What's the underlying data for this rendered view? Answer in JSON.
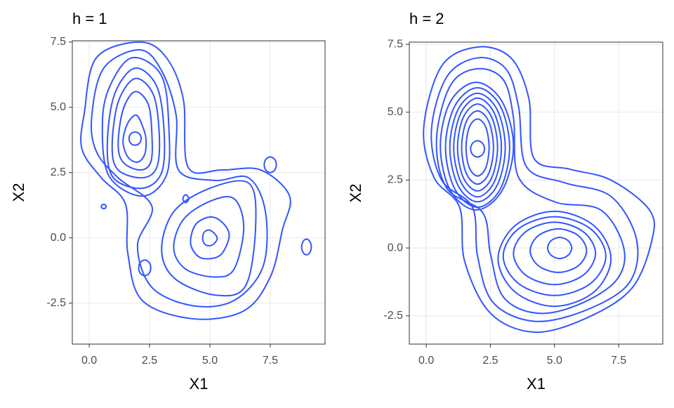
{
  "chart_data": [
    {
      "type": "contour",
      "title": "h = 1",
      "x_label": "X1",
      "y_label": "X2",
      "color": "#3355ff",
      "grid": true,
      "xlim": [
        -0.7,
        9.77
      ],
      "ylim": [
        -4.07,
        7.55
      ],
      "xticks": [
        {
          "value": 0,
          "label": "0.0"
        },
        {
          "value": 2.5,
          "label": "2.5"
        },
        {
          "value": 5,
          "label": "5.0"
        },
        {
          "value": 7.5,
          "label": "7.5"
        }
      ],
      "yticks": [
        {
          "value": -2.5,
          "label": "-2.5"
        },
        {
          "value": 0,
          "label": "0.0"
        },
        {
          "value": 2.5,
          "label": "2.5"
        },
        {
          "value": 5,
          "label": "5.0"
        },
        {
          "value": 7.5,
          "label": "7.5"
        }
      ],
      "series": [
        {
          "x": [
            2.15,
            2.08,
            1.9,
            1.72,
            1.65,
            1.72,
            1.9,
            2.08
          ],
          "values": [
            3.8,
            3.98,
            4.05,
            3.98,
            3.8,
            3.62,
            3.55,
            3.62
          ]
        },
        {
          "x": [
            2.35,
            2.2,
            1.95,
            1.6,
            1.4,
            1.6,
            2.0,
            2.3
          ],
          "values": [
            3.8,
            4.3,
            4.7,
            4.4,
            3.7,
            3.1,
            2.9,
            3.2
          ]
        },
        {
          "x": [
            2.6,
            2.45,
            1.9,
            1.4,
            1.2,
            1.4,
            2.1,
            2.55
          ],
          "values": [
            3.9,
            5.1,
            5.6,
            4.9,
            3.6,
            2.9,
            2.6,
            2.9
          ]
        },
        {
          "x": [
            2.9,
            2.65,
            1.9,
            1.2,
            0.95,
            1.2,
            2.2,
            2.8
          ],
          "values": [
            4.0,
            5.5,
            6.1,
            5.2,
            3.5,
            2.6,
            2.3,
            2.7
          ]
        },
        {
          "x": [
            3.1,
            2.8,
            1.9,
            1.05,
            0.75,
            1.0,
            2.2,
            3.0
          ],
          "values": [
            4.1,
            5.8,
            6.5,
            5.5,
            3.6,
            2.3,
            1.9,
            2.5
          ]
        },
        {
          "x": [
            3.3,
            3.0,
            1.8,
            0.9,
            0.55,
            0.8,
            2.2,
            3.2
          ],
          "values": [
            4.2,
            6.2,
            6.9,
            5.9,
            4.5,
            2.4,
            1.6,
            2.4
          ]
        },
        {
          "x": [
            5.3,
            5.15,
            4.95,
            4.75,
            4.7,
            4.8,
            5.0,
            5.2
          ],
          "values": [
            0,
            0.2,
            0.3,
            0.2,
            -0.05,
            -0.25,
            -0.3,
            -0.2
          ]
        },
        {
          "x": [
            5.8,
            5.5,
            5.0,
            4.4,
            4.2,
            4.5,
            5.0,
            5.5
          ],
          "values": [
            0.1,
            0.6,
            0.8,
            0.5,
            -0.2,
            -0.7,
            -0.8,
            -0.6
          ]
        },
        {
          "x": [
            6.4,
            6.0,
            5.0,
            3.9,
            3.5,
            4.0,
            5.2,
            6.0
          ],
          "values": [
            0.4,
            1.5,
            1.4,
            0.7,
            -0.4,
            -1.2,
            -1.5,
            -1.2
          ]
        },
        {
          "x": [
            6.9,
            6.6,
            5.0,
            3.5,
            3.0,
            3.6,
            5.3,
            6.5
          ],
          "values": [
            0.6,
            2.1,
            1.9,
            1.0,
            -0.5,
            -1.6,
            -2.2,
            -1.8
          ]
        },
        {
          "x": [
            0.1,
            0.6,
            2.1,
            3.0,
            3.6,
            3.7,
            5.2,
            6.6,
            7.3,
            7.2,
            6.0,
            4.3,
            2.6,
            2.0,
            2.6,
            1.2,
            0.3
          ],
          "values": [
            4.6,
            6.5,
            7.2,
            6.4,
            4.7,
            2.6,
            2.2,
            2.3,
            1.0,
            -1.1,
            -2.4,
            -2.6,
            -1.9,
            -0.3,
            1.2,
            2.3,
            3.3
          ]
        },
        {
          "x": [
            -0.2,
            0.3,
            2.1,
            3.2,
            3.9,
            4.1,
            5.5,
            7.1,
            8.3,
            8.0,
            7.5,
            6.4,
            4.3,
            2.2,
            1.6,
            1.5,
            0.5,
            -0.3
          ],
          "values": [
            4.8,
            6.9,
            7.5,
            6.9,
            5.3,
            2.7,
            2.6,
            2.6,
            1.6,
            0.3,
            -1.5,
            -2.8,
            -3.1,
            -2.4,
            -0.6,
            1.3,
            2.3,
            3.4
          ]
        },
        {
          "x": [
            7.75,
            7.68,
            7.5,
            7.32,
            7.25,
            7.32,
            7.5,
            7.68
          ],
          "values": [
            2.8,
            3.01,
            3.1,
            3.01,
            2.8,
            2.59,
            2.5,
            2.59
          ]
        },
        {
          "x": [
            9.2,
            9.14,
            9.0,
            8.86,
            8.8,
            8.86,
            9.0,
            9.14
          ],
          "values": [
            -0.35,
            -0.14,
            -0.05,
            -0.14,
            -0.35,
            -0.56,
            -0.65,
            -0.56
          ]
        },
        {
          "x": [
            0.7,
            0.67,
            0.6,
            0.53,
            0.5,
            0.53,
            0.6,
            0.67
          ],
          "values": [
            1.2,
            1.26,
            1.28,
            1.26,
            1.2,
            1.14,
            1.12,
            1.14
          ]
        },
        {
          "x": [
            2.55,
            2.48,
            2.3,
            2.12,
            2.05,
            2.12,
            2.3,
            2.48
          ],
          "values": [
            -1.15,
            -0.94,
            -0.85,
            -0.94,
            -1.15,
            -1.36,
            -1.45,
            -1.36
          ]
        },
        {
          "x": [
            4.12,
            4.08,
            4.0,
            3.92,
            3.88,
            3.92,
            4.0,
            4.08
          ],
          "values": [
            1.5,
            1.6,
            1.65,
            1.6,
            1.5,
            1.4,
            1.35,
            1.4
          ]
        }
      ]
    },
    {
      "type": "contour",
      "title": "h = 2",
      "x_label": "X1",
      "y_label": "X2",
      "color": "#3355ff",
      "grid": true,
      "xlim": [
        -0.66,
        9.22
      ],
      "ylim": [
        -3.54,
        7.58
      ],
      "xticks": [
        {
          "value": 0,
          "label": "0.0"
        },
        {
          "value": 2.5,
          "label": "2.5"
        },
        {
          "value": 5,
          "label": "5.0"
        },
        {
          "value": 7.5,
          "label": "7.5"
        }
      ],
      "yticks": [
        {
          "value": -2.5,
          "label": "-2.5"
        },
        {
          "value": 0,
          "label": "0.0"
        },
        {
          "value": 2.5,
          "label": "2.5"
        },
        {
          "value": 5,
          "label": "5.0"
        },
        {
          "value": 7.5,
          "label": "7.5"
        }
      ],
      "series": [
        {
          "x": [
            2.27,
            2.19,
            2,
            1.81,
            1.73,
            1.81,
            2,
            2.19
          ],
          "values": [
            3.65,
            3.86,
            3.95,
            3.86,
            3.65,
            3.44,
            3.35,
            3.44
          ]
        },
        {
          "x": [
            2.45,
            2.32,
            2.0,
            1.68,
            1.55,
            1.68,
            2.0,
            2.32
          ],
          "values": [
            3.7,
            4.45,
            4.75,
            4.45,
            3.7,
            2.95,
            2.65,
            2.95
          ]
        },
        {
          "x": [
            2.62,
            2.44,
            2,
            1.56,
            1.38,
            1.56,
            2,
            2.44
          ],
          "values": [
            3.7,
            4.65,
            5.05,
            4.65,
            3.7,
            2.75,
            2.35,
            2.75
          ]
        },
        {
          "x": [
            2.78,
            2.55,
            2,
            1.45,
            1.22,
            1.45,
            2,
            2.55
          ],
          "values": [
            3.7,
            4.82,
            5.3,
            4.82,
            3.7,
            2.58,
            2.1,
            2.58
          ]
        },
        {
          "x": [
            2.93,
            2.65,
            2,
            1.35,
            1.07,
            1.35,
            2,
            2.65
          ],
          "values": [
            3.7,
            4.97,
            5.52,
            4.97,
            3.7,
            2.43,
            1.88,
            2.43
          ]
        },
        {
          "x": [
            3.08,
            2.76,
            2,
            1.24,
            0.92,
            1.24,
            2,
            2.76
          ],
          "values": [
            3.7,
            5.1,
            5.7,
            5.1,
            3.7,
            2.3,
            1.7,
            2.3
          ]
        },
        {
          "x": [
            3.25,
            2.88,
            2,
            1.12,
            0.75,
            1.12,
            2,
            2.88
          ],
          "values": [
            3.7,
            5.24,
            5.9,
            5.24,
            3.7,
            2.16,
            1.5,
            2.16
          ]
        },
        {
          "x": [
            3.4,
            2.95,
            1.95,
            0.95,
            0.55,
            0.95,
            1.95,
            2.95
          ],
          "values": [
            3.75,
            5.4,
            6.1,
            5.4,
            3.75,
            2.1,
            1.4,
            2.1
          ]
        },
        {
          "x": [
            5.67,
            5.53,
            5.2,
            4.87,
            4.73,
            4.87,
            5.2,
            5.53
          ],
          "values": [
            0,
            0.27,
            0.39,
            0.27,
            0,
            -0.27,
            -0.39,
            -0.27
          ]
        },
        {
          "x": [
            6.25,
            5.92,
            5.15,
            4.38,
            4.05,
            4.38,
            5.15,
            5.92
          ],
          "values": [
            -0.1,
            0.46,
            0.7,
            0.46,
            -0.1,
            -0.66,
            -0.9,
            -0.66
          ]
        },
        {
          "x": [
            6.6,
            6.12,
            5.0,
            3.88,
            3.4,
            3.88,
            5.0,
            6.12
          ],
          "values": [
            -0.2,
            0.6,
            0.95,
            0.6,
            -0.2,
            -1.0,
            -1.35,
            -1.0
          ]
        },
        {
          "x": [
            7.0,
            6.4,
            5.0,
            3.6,
            3.0,
            3.6,
            5.0,
            6.4
          ],
          "values": [
            -0.3,
            0.71,
            1.15,
            0.71,
            -0.3,
            -1.31,
            -1.75,
            -1.31
          ]
        },
        {
          "x": [
            7.2,
            6.54,
            5.0,
            3.46,
            2.8,
            3.46,
            5.0,
            6.54
          ],
          "values": [
            -0.4,
            0.82,
            1.35,
            0.82,
            -0.4,
            -1.62,
            -2.15,
            -1.62
          ]
        },
        {
          "x": [
            0.4,
            0.95,
            2.0,
            3.0,
            3.4,
            3.6,
            5.0,
            6.8,
            7.7,
            7.4,
            5.9,
            4.3,
            3.0,
            2.5,
            2.2,
            0.8
          ],
          "values": [
            4.0,
            6.0,
            6.6,
            6.2,
            4.8,
            2.6,
            1.7,
            1.4,
            0.0,
            -1.2,
            -2.1,
            -2.4,
            -1.8,
            -0.2,
            1.3,
            2.2
          ]
        },
        {
          "x": [
            0.2,
            0.8,
            2.0,
            3.1,
            3.6,
            3.9,
            5.4,
            7.2,
            8.2,
            7.9,
            6.2,
            4.2,
            2.6,
            2.0,
            1.8,
            0.6
          ],
          "values": [
            4.3,
            6.3,
            7.0,
            6.6,
            5.2,
            3.0,
            2.4,
            1.9,
            0.3,
            -1.3,
            -2.3,
            -2.7,
            -2.0,
            -0.3,
            1.5,
            2.5
          ]
        },
        {
          "x": [
            -0.1,
            0.6,
            2.0,
            3.3,
            4.0,
            4.2,
            5.6,
            7.2,
            8.7,
            8.8,
            8.0,
            6.2,
            4.2,
            2.5,
            1.5,
            1.3,
            0.3
          ],
          "values": [
            4.4,
            6.7,
            7.4,
            7.0,
            5.5,
            3.3,
            2.9,
            2.5,
            1.4,
            0.3,
            -1.5,
            -2.6,
            -3.1,
            -2.4,
            -0.5,
            1.5,
            2.6
          ]
        }
      ]
    }
  ]
}
